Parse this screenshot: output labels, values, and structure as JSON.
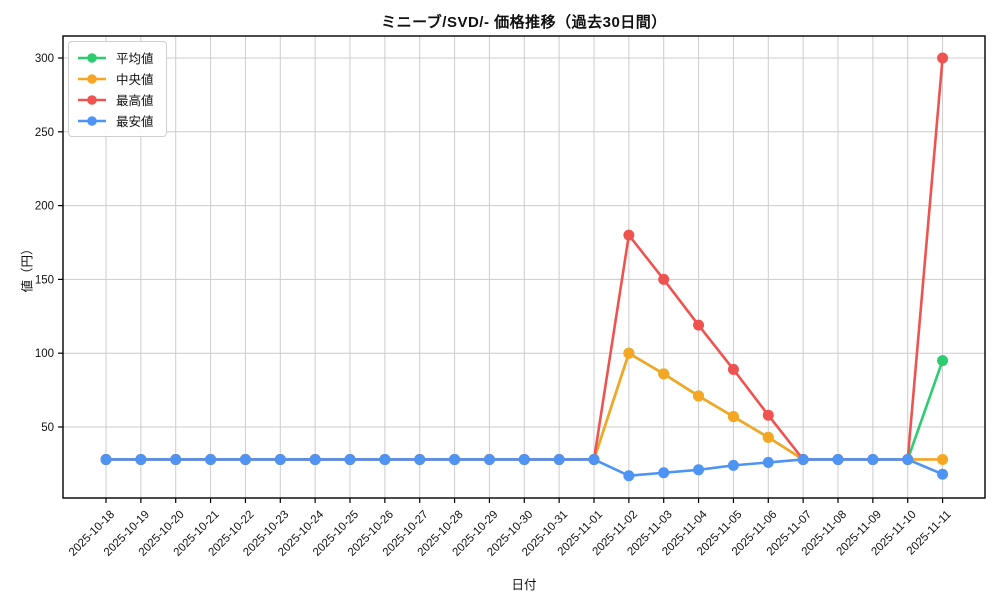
{
  "title": "ミニーブ/SVD/- 価格推移（過去30日間）",
  "axes": {
    "x_label": "日付",
    "y_label": "値（円）",
    "y_ticks": [
      50,
      100,
      150,
      200,
      250,
      300
    ],
    "grid_color": "#cccccc",
    "spine_color": "#000000",
    "tick_label_color": "#111111"
  },
  "legend": {
    "position": "top-left",
    "items": [
      {
        "key": "avg",
        "label": "平均値",
        "color": "#2ecc71"
      },
      {
        "key": "median",
        "label": "中央値",
        "color": "#f5a623"
      },
      {
        "key": "max",
        "label": "最高値",
        "color": "#ef5350"
      },
      {
        "key": "min",
        "label": "最安値",
        "color": "#4d94f5"
      }
    ]
  },
  "chart_data": {
    "type": "line",
    "title": "ミニーブ/SVD/- 価格推移（過去30日間）",
    "xlabel": "日付",
    "ylabel": "値（円）",
    "grid": true,
    "legend_position": "upper left",
    "ylim": [
      2,
      315
    ],
    "x": [
      "2025-10-18",
      "2025-10-19",
      "2025-10-20",
      "2025-10-21",
      "2025-10-22",
      "2025-10-23",
      "2025-10-24",
      "2025-10-25",
      "2025-10-26",
      "2025-10-27",
      "2025-10-28",
      "2025-10-29",
      "2025-10-30",
      "2025-10-31",
      "2025-11-01",
      "2025-11-02",
      "2025-11-03",
      "2025-11-04",
      "2025-11-05",
      "2025-11-06",
      "2025-11-07",
      "2025-11-08",
      "2025-11-09",
      "2025-11-10",
      "2025-11-11"
    ],
    "series": [
      {
        "key": "avg",
        "name": "平均値",
        "color": "#2ecc71",
        "values": [
          28,
          28,
          28,
          28,
          28,
          28,
          28,
          28,
          28,
          28,
          28,
          28,
          28,
          28,
          28,
          100,
          86,
          71,
          57,
          43,
          28,
          28,
          28,
          28,
          95
        ]
      },
      {
        "key": "median",
        "name": "中央値",
        "color": "#f5a623",
        "values": [
          28,
          28,
          28,
          28,
          28,
          28,
          28,
          28,
          28,
          28,
          28,
          28,
          28,
          28,
          28,
          100,
          86,
          71,
          57,
          43,
          28,
          28,
          28,
          28,
          28
        ]
      },
      {
        "key": "max",
        "name": "最高値",
        "color": "#ef5350",
        "values": [
          28,
          28,
          28,
          28,
          28,
          28,
          28,
          28,
          28,
          28,
          28,
          28,
          28,
          28,
          28,
          180,
          150,
          119,
          89,
          58,
          28,
          28,
          28,
          28,
          300
        ]
      },
      {
        "key": "min",
        "name": "最安値",
        "color": "#4d94f5",
        "values": [
          28,
          28,
          28,
          28,
          28,
          28,
          28,
          28,
          28,
          28,
          28,
          28,
          28,
          28,
          28,
          17,
          19,
          21,
          24,
          26,
          28,
          28,
          28,
          28,
          18
        ]
      }
    ]
  }
}
